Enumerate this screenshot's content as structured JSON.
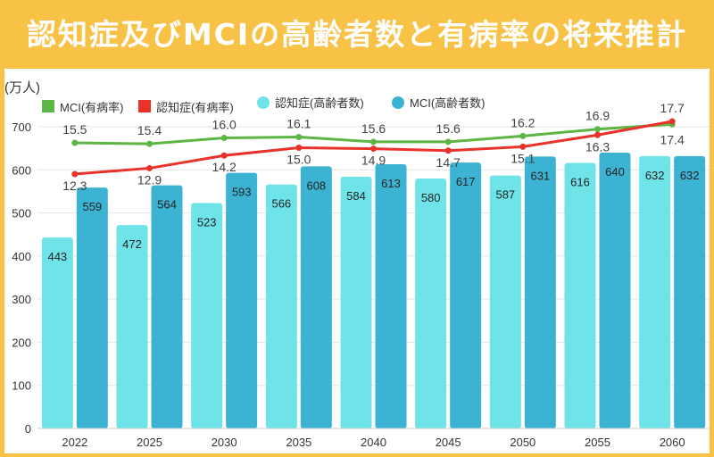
{
  "title": "認知症及びMCIの高齢者数と有病率の将来推計",
  "chart_data": {
    "type": "bar+line",
    "title": "認知症及びMCIの高齢者数と有病率の将来推計",
    "ylabel": "(万人)",
    "ylim": [
      0,
      700
    ],
    "yticks": [
      0,
      100,
      200,
      300,
      400,
      500,
      600,
      700
    ],
    "grid": true,
    "legend_position": "top",
    "categories": [
      "2022",
      "2025",
      "2030",
      "2035",
      "2040",
      "2045",
      "2050",
      "2055",
      "2060"
    ],
    "bar_series": [
      {
        "name": "認知症(高齢者数)",
        "color": "#6EE3E8",
        "values": [
          443,
          472,
          523,
          566,
          584,
          580,
          587,
          616,
          632
        ]
      },
      {
        "name": "MCI(高齢者数)",
        "color": "#3DB3D3",
        "values": [
          559,
          564,
          593,
          608,
          613,
          617,
          631,
          640,
          632
        ]
      }
    ],
    "line_series": [
      {
        "name": "MCI(有病率)",
        "color": "#5DB543",
        "values": [
          15.5,
          15.4,
          16.0,
          16.1,
          15.6,
          15.6,
          16.2,
          16.9,
          17.4
        ]
      },
      {
        "name": "認知症(有病率)",
        "color": "#E8322A",
        "values": [
          12.3,
          12.9,
          14.2,
          15.0,
          14.9,
          14.7,
          15.1,
          16.3,
          17.7
        ]
      }
    ],
    "legend": [
      "MCI(有病率)",
      "認知症(有病率)",
      "認知症(高齢者数)",
      "MCI(高齢者数)"
    ]
  }
}
